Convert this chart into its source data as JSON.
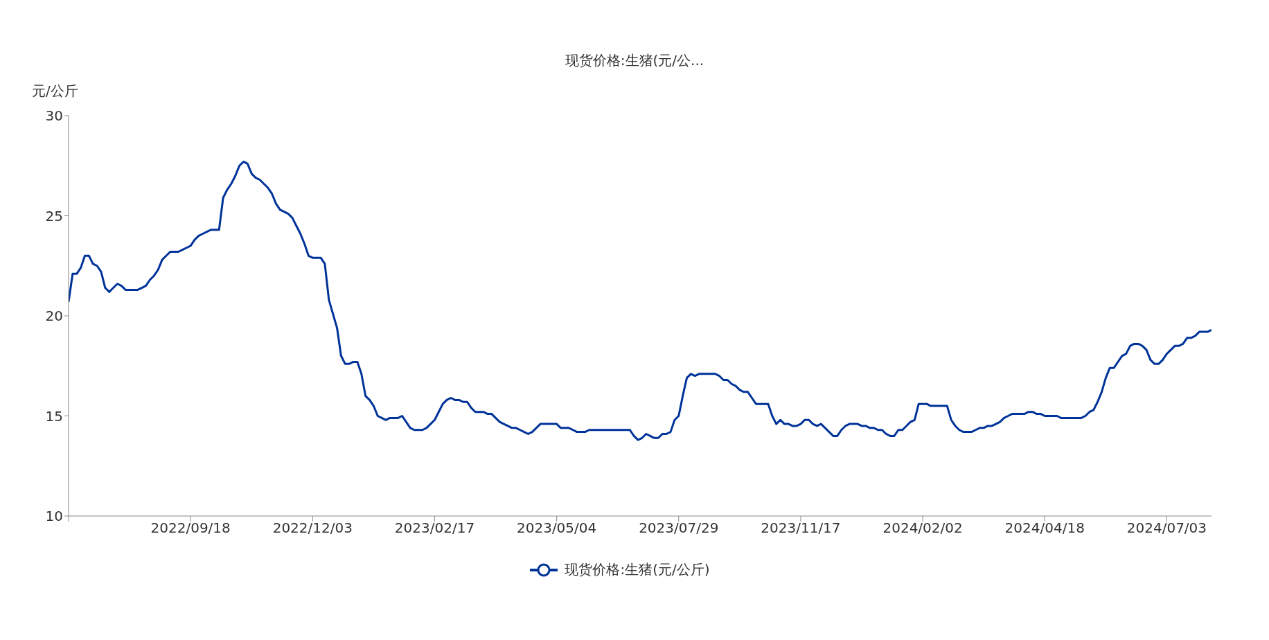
{
  "chart_data": {
    "type": "line",
    "title": "现货价格:生猪(元/公...",
    "ylabel": "元/公斤",
    "categories": [
      null,
      null,
      null,
      null,
      null,
      null,
      null,
      null,
      null,
      null,
      null,
      null,
      null,
      null,
      null,
      null,
      null,
      null,
      null,
      null,
      null,
      null,
      null,
      null,
      null,
      null,
      null,
      null,
      null,
      null,
      "2022/09/18",
      null,
      null,
      null,
      null,
      null,
      null,
      null,
      null,
      null,
      null,
      null,
      null,
      null,
      null,
      null,
      null,
      null,
      null,
      null,
      null,
      null,
      null,
      null,
      null,
      null,
      null,
      null,
      null,
      null,
      "2022/12/03",
      null,
      null,
      null,
      null,
      null,
      null,
      null,
      null,
      null,
      null,
      null,
      null,
      null,
      null,
      null,
      null,
      null,
      null,
      null,
      null,
      null,
      null,
      null,
      null,
      null,
      null,
      null,
      null,
      null,
      "2023/02/17",
      null,
      null,
      null,
      null,
      null,
      null,
      null,
      null,
      null,
      null,
      null,
      null,
      null,
      null,
      null,
      null,
      null,
      null,
      null,
      null,
      null,
      null,
      null,
      null,
      null,
      null,
      null,
      null,
      null,
      "2023/05/04",
      null,
      null,
      null,
      null,
      null,
      null,
      null,
      null,
      null,
      null,
      null,
      null,
      null,
      null,
      null,
      null,
      null,
      null,
      null,
      null,
      null,
      null,
      null,
      null,
      null,
      null,
      null,
      null,
      null,
      "2023/07/29",
      null,
      null,
      null,
      null,
      null,
      null,
      null,
      null,
      null,
      null,
      null,
      null,
      null,
      null,
      null,
      null,
      null,
      null,
      null,
      null,
      null,
      null,
      null,
      null,
      null,
      null,
      null,
      null,
      null,
      "2023/11/17",
      null,
      null,
      null,
      null,
      null,
      null,
      null,
      null,
      null,
      null,
      null,
      null,
      null,
      null,
      null,
      null,
      null,
      null,
      null,
      null,
      null,
      null,
      null,
      null,
      null,
      null,
      null,
      null,
      null,
      "2024/02/02",
      null,
      null,
      null,
      null,
      null,
      null,
      null,
      null,
      null,
      null,
      null,
      null,
      null,
      null,
      null,
      null,
      null,
      null,
      null,
      null,
      null,
      null,
      null,
      null,
      null,
      null,
      null,
      null,
      null,
      "2024/04/18",
      null,
      null,
      null,
      null,
      null,
      null,
      null,
      null,
      null,
      null,
      null,
      null,
      null,
      null,
      null,
      null,
      null,
      null,
      null,
      null,
      null,
      null,
      null,
      null,
      null,
      null,
      null,
      null,
      null,
      "2024/07/03",
      null,
      null,
      null,
      null,
      null,
      null,
      null,
      null,
      null,
      null,
      null
    ],
    "series": [
      {
        "name": "现货价格:生猪(元/公斤)",
        "color": "#003399",
        "values": [
          20.7,
          22.1,
          22.1,
          22.4,
          23.0,
          23.0,
          22.6,
          22.5,
          22.2,
          21.4,
          21.2,
          21.4,
          21.6,
          21.5,
          21.3,
          21.3,
          21.3,
          21.3,
          21.4,
          21.5,
          21.8,
          22.0,
          22.3,
          22.8,
          23.0,
          23.2,
          23.2,
          23.2,
          23.3,
          23.4,
          23.5,
          23.8,
          24.0,
          24.1,
          24.2,
          24.3,
          24.3,
          24.3,
          25.9,
          26.3,
          26.6,
          27.0,
          27.5,
          27.7,
          27.6,
          27.1,
          26.9,
          26.8,
          26.6,
          26.4,
          26.1,
          25.6,
          25.3,
          25.2,
          25.1,
          24.9,
          24.5,
          24.1,
          23.6,
          23.0,
          22.9,
          22.9,
          22.9,
          22.6,
          20.8,
          20.1,
          19.4,
          18.0,
          17.6,
          17.6,
          17.7,
          17.7,
          17.1,
          16.0,
          15.8,
          15.5,
          15.0,
          14.9,
          14.8,
          14.9,
          14.9,
          14.9,
          15.0,
          14.7,
          14.4,
          14.3,
          14.3,
          14.3,
          14.4,
          14.6,
          14.8,
          15.2,
          15.6,
          15.8,
          15.9,
          15.8,
          15.8,
          15.7,
          15.7,
          15.4,
          15.2,
          15.2,
          15.2,
          15.1,
          15.1,
          14.9,
          14.7,
          14.6,
          14.5,
          14.4,
          14.4,
          14.3,
          14.2,
          14.1,
          14.2,
          14.4,
          14.6,
          14.6,
          14.6,
          14.6,
          14.6,
          14.4,
          14.4,
          14.4,
          14.3,
          14.2,
          14.2,
          14.2,
          14.3,
          14.3,
          14.3,
          14.3,
          14.3,
          14.3,
          14.3,
          14.3,
          14.3,
          14.3,
          14.3,
          14.0,
          13.8,
          13.9,
          14.1,
          14.0,
          13.9,
          13.9,
          14.1,
          14.1,
          14.2,
          14.8,
          15.0,
          16.0,
          16.9,
          17.1,
          17.0,
          17.1,
          17.1,
          17.1,
          17.1,
          17.1,
          17.0,
          16.8,
          16.8,
          16.6,
          16.5,
          16.3,
          16.2,
          16.2,
          15.9,
          15.6,
          15.6,
          15.6,
          15.6,
          15.0,
          14.6,
          14.8,
          14.6,
          14.6,
          14.5,
          14.5,
          14.6,
          14.8,
          14.8,
          14.6,
          14.5,
          14.6,
          14.4,
          14.2,
          14.0,
          14.0,
          14.3,
          14.5,
          14.6,
          14.6,
          14.6,
          14.5,
          14.5,
          14.4,
          14.4,
          14.3,
          14.3,
          14.1,
          14.0,
          14.0,
          14.3,
          14.3,
          14.5,
          14.7,
          14.8,
          15.6,
          15.6,
          15.6,
          15.5,
          15.5,
          15.5,
          15.5,
          15.5,
          14.8,
          14.5,
          14.3,
          14.2,
          14.2,
          14.2,
          14.3,
          14.4,
          14.4,
          14.5,
          14.5,
          14.6,
          14.7,
          14.9,
          15.0,
          15.1,
          15.1,
          15.1,
          15.1,
          15.2,
          15.2,
          15.1,
          15.1,
          15.0,
          15.0,
          15.0,
          15.0,
          14.9,
          14.9,
          14.9,
          14.9,
          14.9,
          14.9,
          15.0,
          15.2,
          15.3,
          15.7,
          16.2,
          16.9,
          17.4,
          17.4,
          17.7,
          18.0,
          18.1,
          18.5,
          18.6,
          18.6,
          18.5,
          18.3,
          17.8,
          17.6,
          17.6,
          17.8,
          18.1,
          18.3,
          18.5,
          18.5,
          18.6,
          18.9,
          18.9,
          19.0,
          19.2,
          19.2,
          19.2,
          19.3
        ]
      }
    ],
    "ylim": [
      10,
      30
    ],
    "yticks": [
      10,
      15,
      20,
      25,
      30
    ],
    "legend": "bottom"
  }
}
